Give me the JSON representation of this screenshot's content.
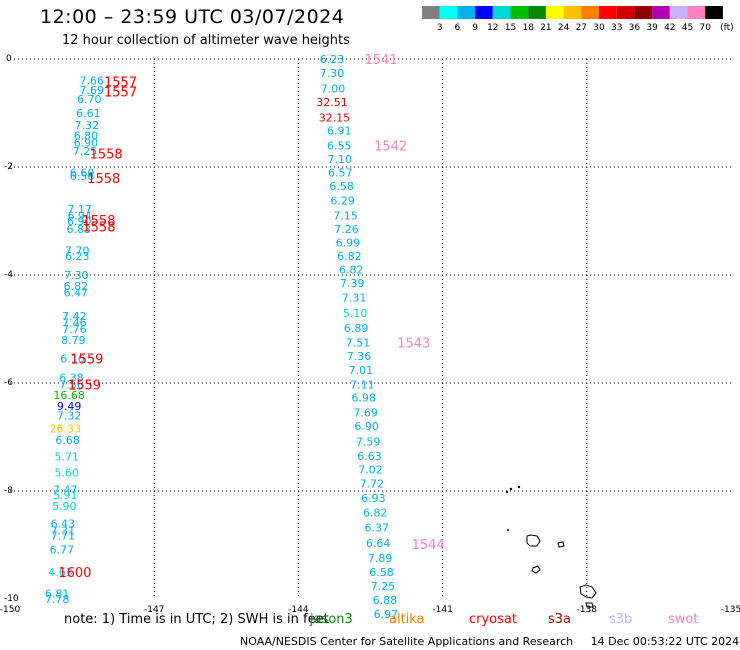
{
  "header": {
    "title": "12:00 – 23:59 UTC 03/07/2024",
    "subtitle": "12 hour collection of altimeter wave heights"
  },
  "legend": {
    "labels": [
      "3",
      "6",
      "9",
      "12",
      "15",
      "18",
      "21",
      "24",
      "27",
      "30",
      "33",
      "36",
      "39",
      "42",
      "45",
      "70"
    ],
    "unit": "(ft)",
    "colors": [
      "#808080",
      "#00ffff",
      "#00b0f0",
      "#0000ff",
      "#00d8d8",
      "#00c000",
      "#008800",
      "#ffff00",
      "#ffc000",
      "#ff8000",
      "#ff0000",
      "#d00000",
      "#900000",
      "#b000b0",
      "#c8b0ff",
      "#ff80c0",
      "#000000"
    ]
  },
  "footer": {
    "note": "note: 1) Time is in UTC; 2) SWH is in feet",
    "credit": "NOAA/NESDIS Center for Satellite Applications and Research",
    "generated": "14 Dec 00:53:22 UTC 2024",
    "satellites": [
      {
        "name": "jason3",
        "color": "#008800"
      },
      {
        "name": "altika",
        "color": "#ff8000"
      },
      {
        "name": "cryosat",
        "color": "#ff0000"
      },
      {
        "name": "s3a",
        "color": "#b00000"
      },
      {
        "name": "s3b",
        "color": "#c8b0ff"
      },
      {
        "name": "swot",
        "color": "#ff80c0"
      }
    ]
  },
  "map": {
    "x_ticks": [
      "-150",
      "-147",
      "-144",
      "-141",
      "-138",
      "-135"
    ],
    "y_ticks": [
      "0",
      "-2",
      "-4",
      "-6",
      "-8",
      "-10"
    ],
    "xlim": [
      -150,
      -135
    ],
    "ylim": [
      -10,
      0
    ]
  },
  "chart_data": {
    "type": "scatter",
    "tracks": [
      {
        "points": [
          {
            "lon": -148.3,
            "lat": -0.4,
            "v": "7.66",
            "c": "#00b0f0"
          },
          {
            "lon": -148.3,
            "lat": -0.57,
            "v": "7.69",
            "c": "#00b0f0"
          },
          {
            "lon": -148.35,
            "lat": -0.74,
            "v": "6.70",
            "c": "#00b0f0"
          },
          {
            "lon": -148.37,
            "lat": -1.0,
            "v": "6.61",
            "c": "#00b0f0"
          },
          {
            "lon": -148.4,
            "lat": -1.22,
            "v": "7.32",
            "c": "#00b0f0"
          },
          {
            "lon": -148.42,
            "lat": -1.42,
            "v": "6.80",
            "c": "#00b0f0"
          },
          {
            "lon": -148.42,
            "lat": -1.55,
            "v": "6.90",
            "c": "#00b0f0"
          },
          {
            "lon": -148.44,
            "lat": -1.7,
            "v": "7.25",
            "c": "#00b0f0"
          },
          {
            "lon": -148.5,
            "lat": -2.1,
            "v": "6.60",
            "c": "#00b0f0"
          },
          {
            "lon": -148.5,
            "lat": -2.17,
            "v": "6.56",
            "c": "#00b0f0"
          },
          {
            "lon": -148.55,
            "lat": -2.78,
            "v": "7.17",
            "c": "#00b0f0"
          },
          {
            "lon": -148.55,
            "lat": -2.9,
            "v": "6.94",
            "c": "#00b0f0"
          },
          {
            "lon": -148.56,
            "lat": -3.0,
            "v": "6.90",
            "c": "#00b0f0"
          },
          {
            "lon": -148.57,
            "lat": -3.15,
            "v": "6.83",
            "c": "#00b0f0"
          },
          {
            "lon": -148.6,
            "lat": -3.55,
            "v": "7.70",
            "c": "#00b0f0"
          },
          {
            "lon": -148.6,
            "lat": -3.65,
            "v": "6.23",
            "c": "#00b0f0"
          },
          {
            "lon": -148.62,
            "lat": -4.0,
            "v": "7.30",
            "c": "#00b0f0"
          },
          {
            "lon": -148.63,
            "lat": -4.2,
            "v": "6.82",
            "c": "#00b0f0"
          },
          {
            "lon": -148.63,
            "lat": -4.32,
            "v": "6.47",
            "c": "#00b0f0"
          },
          {
            "lon": -148.66,
            "lat": -4.76,
            "v": "7.42",
            "c": "#00b0f0"
          },
          {
            "lon": -148.66,
            "lat": -4.88,
            "v": "7.46",
            "c": "#00b0f0"
          },
          {
            "lon": -148.66,
            "lat": -5.0,
            "v": "7.76",
            "c": "#00b0f0"
          },
          {
            "lon": -148.68,
            "lat": -5.2,
            "v": "8.79",
            "c": "#00b0f0"
          },
          {
            "lon": -148.7,
            "lat": -5.55,
            "v": "6.16",
            "c": "#00b0f0"
          },
          {
            "lon": -148.72,
            "lat": -5.9,
            "v": "6.38",
            "c": "#00b0f0"
          },
          {
            "lon": -148.72,
            "lat": -6.03,
            "v": "7.56",
            "c": "#00b0f0"
          },
          {
            "lon": -148.77,
            "lat": -6.22,
            "v": "16.68",
            "c": "#00c000"
          },
          {
            "lon": -148.77,
            "lat": -6.43,
            "v": "9.49",
            "c": "#0000ff"
          },
          {
            "lon": -148.77,
            "lat": -6.6,
            "v": "7.32",
            "c": "#00b0f0"
          },
          {
            "lon": -148.85,
            "lat": -6.84,
            "v": "26.33",
            "c": "#ffc000"
          },
          {
            "lon": -148.8,
            "lat": -7.06,
            "v": "6.68",
            "c": "#00b0f0"
          },
          {
            "lon": -148.82,
            "lat": -7.36,
            "v": "5.71",
            "c": "#00d8d8"
          },
          {
            "lon": -148.82,
            "lat": -7.66,
            "v": "5.60",
            "c": "#00d8d8"
          },
          {
            "lon": -148.85,
            "lat": -7.97,
            "v": "7.47",
            "c": "#00b0f0"
          },
          {
            "lon": -148.85,
            "lat": -8.07,
            "v": "5.91",
            "c": "#00d8d8"
          },
          {
            "lon": -148.87,
            "lat": -8.28,
            "v": "5.90",
            "c": "#00d8d8"
          },
          {
            "lon": -148.9,
            "lat": -8.6,
            "v": "6.43",
            "c": "#00b0f0"
          },
          {
            "lon": -148.9,
            "lat": -8.73,
            "v": "7.31",
            "c": "#00b0f0"
          },
          {
            "lon": -148.9,
            "lat": -8.82,
            "v": "7.71",
            "c": "#00b0f0"
          },
          {
            "lon": -148.92,
            "lat": -9.08,
            "v": "6.77",
            "c": "#00b0f0"
          },
          {
            "lon": -148.95,
            "lat": -9.5,
            "v": "4.63",
            "c": "#00d8d8"
          },
          {
            "lon": -149.02,
            "lat": -9.9,
            "v": "6.81",
            "c": "#00b0f0"
          },
          {
            "lon": -149.02,
            "lat": -10.0,
            "v": "7.78",
            "c": "#00b0f0"
          }
        ],
        "passes": [
          {
            "lon": -147.7,
            "lat": -0.42,
            "id": "1557",
            "c": "#ff0000"
          },
          {
            "lon": -147.7,
            "lat": -0.6,
            "id": "1557",
            "c": "#ff0000"
          },
          {
            "lon": -148.0,
            "lat": -1.75,
            "id": "1558",
            "c": "#ff0000"
          },
          {
            "lon": -148.05,
            "lat": -2.2,
            "id": "1558",
            "c": "#ff0000"
          },
          {
            "lon": -148.15,
            "lat": -2.98,
            "id": "1558",
            "c": "#ff0000"
          },
          {
            "lon": -148.15,
            "lat": -3.1,
            "id": "1558",
            "c": "#ff0000"
          },
          {
            "lon": -148.4,
            "lat": -5.55,
            "id": "1559",
            "c": "#ff0000"
          },
          {
            "lon": -148.45,
            "lat": -6.03,
            "id": "1559",
            "c": "#ff0000"
          },
          {
            "lon": -148.65,
            "lat": -9.5,
            "id": "1600",
            "c": "#ff0000"
          }
        ]
      },
      {
        "points": [
          {
            "lon": -143.3,
            "lat": 0.0,
            "v": "6.23",
            "c": "#00b0f0"
          },
          {
            "lon": -143.3,
            "lat": -0.26,
            "v": "7.30",
            "c": "#00b0f0"
          },
          {
            "lon": -143.28,
            "lat": -0.55,
            "v": "7.00",
            "c": "#00b0f0"
          },
          {
            "lon": -143.3,
            "lat": -0.8,
            "v": "32.51",
            "c": "#d00000"
          },
          {
            "lon": -143.25,
            "lat": -1.08,
            "v": "32.15",
            "c": "#ff0000"
          },
          {
            "lon": -143.15,
            "lat": -1.32,
            "v": "6.91",
            "c": "#00b0f0"
          },
          {
            "lon": -143.15,
            "lat": -1.6,
            "v": "6.55",
            "c": "#00b0f0"
          },
          {
            "lon": -143.14,
            "lat": -1.85,
            "v": "7.10",
            "c": "#00b0f0"
          },
          {
            "lon": -143.13,
            "lat": -2.1,
            "v": "6.57",
            "c": "#00b0f0"
          },
          {
            "lon": -143.1,
            "lat": -2.35,
            "v": "6.58",
            "c": "#00b0f0"
          },
          {
            "lon": -143.08,
            "lat": -2.62,
            "v": "6.29",
            "c": "#00b0f0"
          },
          {
            "lon": -143.02,
            "lat": -2.9,
            "v": "7.15",
            "c": "#00b0f0"
          },
          {
            "lon": -143.0,
            "lat": -3.15,
            "v": "7.26",
            "c": "#00b0f0"
          },
          {
            "lon": -142.97,
            "lat": -3.4,
            "v": "6.99",
            "c": "#00b0f0"
          },
          {
            "lon": -142.94,
            "lat": -3.65,
            "v": "6.82",
            "c": "#00b0f0"
          },
          {
            "lon": -142.9,
            "lat": -3.9,
            "v": "6.82",
            "c": "#00b0f0"
          },
          {
            "lon": -142.88,
            "lat": -4.15,
            "v": "7.39",
            "c": "#00b0f0"
          },
          {
            "lon": -142.84,
            "lat": -4.42,
            "v": "7.31",
            "c": "#00b0f0"
          },
          {
            "lon": -142.82,
            "lat": -4.7,
            "v": "5.10",
            "c": "#00d8d8"
          },
          {
            "lon": -142.8,
            "lat": -4.98,
            "v": "6.89",
            "c": "#00b0f0"
          },
          {
            "lon": -142.76,
            "lat": -5.25,
            "v": "7.51",
            "c": "#00b0f0"
          },
          {
            "lon": -142.74,
            "lat": -5.5,
            "v": "7.36",
            "c": "#00b0f0"
          },
          {
            "lon": -142.7,
            "lat": -5.76,
            "v": "7.01",
            "c": "#00b0f0"
          },
          {
            "lon": -142.67,
            "lat": -6.03,
            "v": "7.11",
            "c": "#00b0f0"
          },
          {
            "lon": -142.64,
            "lat": -6.27,
            "v": "6.98",
            "c": "#00b0f0"
          },
          {
            "lon": -142.6,
            "lat": -6.55,
            "v": "7.69",
            "c": "#00b0f0"
          },
          {
            "lon": -142.58,
            "lat": -6.8,
            "v": "6.90",
            "c": "#00b0f0"
          },
          {
            "lon": -142.55,
            "lat": -7.08,
            "v": "7.59",
            "c": "#00b0f0"
          },
          {
            "lon": -142.52,
            "lat": -7.35,
            "v": "6.63",
            "c": "#00b0f0"
          },
          {
            "lon": -142.5,
            "lat": -7.6,
            "v": "7.02",
            "c": "#00b0f0"
          },
          {
            "lon": -142.47,
            "lat": -7.86,
            "v": "7.72",
            "c": "#00b0f0"
          },
          {
            "lon": -142.44,
            "lat": -8.13,
            "v": "6.93",
            "c": "#00b0f0"
          },
          {
            "lon": -142.4,
            "lat": -8.4,
            "v": "6.82",
            "c": "#00b0f0"
          },
          {
            "lon": -142.37,
            "lat": -8.68,
            "v": "6.37",
            "c": "#00b0f0"
          },
          {
            "lon": -142.34,
            "lat": -8.96,
            "v": "6.64",
            "c": "#00b0f0"
          },
          {
            "lon": -142.3,
            "lat": -9.24,
            "v": "7.89",
            "c": "#00b0f0"
          },
          {
            "lon": -142.27,
            "lat": -9.5,
            "v": "6.58",
            "c": "#00b0f0"
          },
          {
            "lon": -142.24,
            "lat": -9.76,
            "v": "7.25",
            "c": "#00b0f0"
          },
          {
            "lon": -142.2,
            "lat": -10.02,
            "v": "6.88",
            "c": "#00b0f0"
          },
          {
            "lon": -142.18,
            "lat": -10.28,
            "v": "6.97",
            "c": "#00b0f0"
          }
        ],
        "passes": [
          {
            "lon": -142.28,
            "lat": 0.0,
            "id": "1541",
            "c": "#ff80c0"
          },
          {
            "lon": -142.08,
            "lat": -1.6,
            "id": "1542",
            "c": "#ff80c0"
          },
          {
            "lon": -141.6,
            "lat": -5.25,
            "id": "1543",
            "c": "#ff80c0"
          },
          {
            "lon": -141.3,
            "lat": -8.98,
            "id": "1544",
            "c": "#ff80c0"
          }
        ]
      }
    ]
  }
}
